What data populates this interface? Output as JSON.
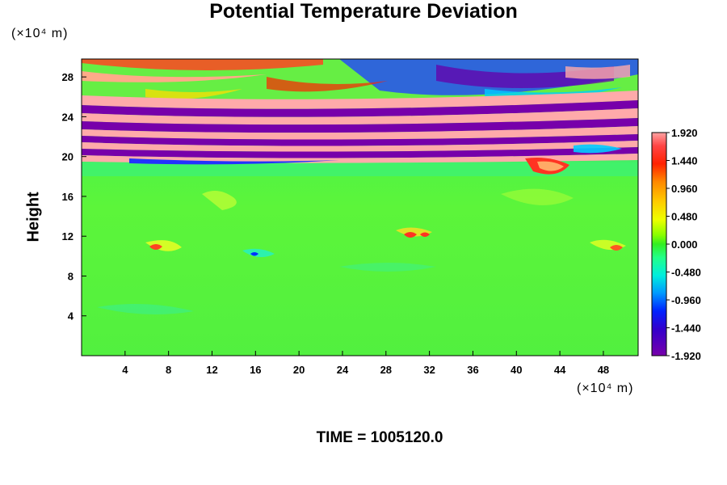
{
  "chart_data": {
    "type": "heatmap",
    "title": "Potential Temperature Deviation",
    "ylabel": "Height",
    "xunit": "(×10⁴ m)",
    "yunit": "(×10⁴ m)",
    "xlim": [
      0,
      51.2
    ],
    "ylim": [
      0,
      29.8
    ],
    "xticks": [
      4,
      8,
      12,
      16,
      20,
      24,
      28,
      32,
      36,
      40,
      44,
      48
    ],
    "yticks": [
      4,
      8,
      12,
      16,
      20,
      24,
      28
    ],
    "colorbar": {
      "min": -1.92,
      "max": 1.92,
      "tick_labels": [
        "1.920",
        "1.440",
        "0.960",
        "0.480",
        "0.000",
        "-0.480",
        "-0.960",
        "-1.440",
        "-1.920"
      ],
      "tick_values": [
        1.92,
        1.44,
        0.96,
        0.48,
        0.0,
        -0.48,
        -0.96,
        -1.44,
        -1.92
      ]
    },
    "annotation": "TIME = 1005120.0"
  }
}
